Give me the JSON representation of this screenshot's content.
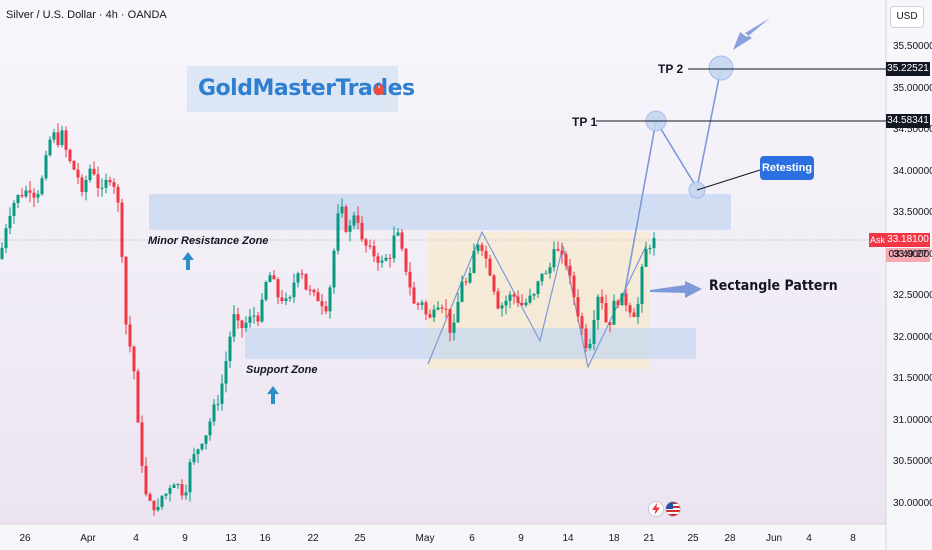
{
  "header": {
    "symbol_title": "Silver / U.S. Dollar · 4h · OANDA",
    "currency": "USD"
  },
  "brand": {
    "name": "GoldMasterTrades",
    "icon": "fire-icon"
  },
  "annotations": {
    "minor_resistance": "Minor Resistance Zone",
    "support": "Support Zone",
    "tp1": "TP 1",
    "tp2": "TP 2",
    "retesting": "Retesting",
    "rectangle": "Rectangle Pattern"
  },
  "price_tags": {
    "tp2_price": "35.22521",
    "tp1_price": "34.58341",
    "ask_label": "Ask",
    "ask_price": "33.18100",
    "countdown": "03:49:27"
  },
  "colors": {
    "up": "#089981",
    "down": "#f23645",
    "zone_blue": "#c5d7f2",
    "rect_yellow": "#f6ead2",
    "projection": "#7d99d9",
    "background": "#f5f1f7"
  },
  "bottom_icons": [
    "lightning-icon",
    "us-flag-icon"
  ],
  "chart_data": {
    "type": "candlestick",
    "title": "Silver / U.S. Dollar · 4h · OANDA",
    "ylim": [
      29.75,
      35.8
    ],
    "y_ticks": [
      "35.50000",
      "35.00000",
      "34.50000",
      "34.00000",
      "33.50000",
      "33.00000",
      "32.50000",
      "32.00000",
      "31.50000",
      "31.00000",
      "30.50000",
      "30.00000"
    ],
    "x_ticks": [
      "26",
      "Apr",
      "4",
      "9",
      "13",
      "16",
      "22",
      "25",
      "May",
      "6",
      "9",
      "14",
      "18",
      "21",
      "25",
      "28",
      "Jun",
      "4",
      "8"
    ],
    "grid": false,
    "candle_close_path": [
      [
        0,
        32.95
      ],
      [
        6,
        33.35
      ],
      [
        12,
        33.6
      ],
      [
        18,
        33.7
      ],
      [
        24,
        33.75
      ],
      [
        30,
        33.8
      ],
      [
        36,
        33.7
      ],
      [
        42,
        33.9
      ],
      [
        47,
        34.2
      ],
      [
        52,
        34.5
      ],
      [
        57,
        34.35
      ],
      [
        62,
        34.45
      ],
      [
        67,
        34.2
      ],
      [
        72,
        34.05
      ],
      [
        77,
        34.0
      ],
      [
        82,
        33.7
      ],
      [
        87,
        33.95
      ],
      [
        92,
        34.1
      ],
      [
        97,
        33.85
      ],
      [
        102,
        33.75
      ],
      [
        107,
        33.9
      ],
      [
        112,
        33.95
      ],
      [
        117,
        33.7
      ],
      [
        121,
        33.3
      ],
      [
        124,
        32.5
      ],
      [
        127,
        32.0
      ],
      [
        130,
        31.9
      ],
      [
        133,
        31.8
      ],
      [
        136,
        31.2
      ],
      [
        139,
        30.8
      ],
      [
        142,
        30.5
      ],
      [
        145,
        30.2
      ],
      [
        148,
        29.9
      ],
      [
        152,
        30.1
      ],
      [
        156,
        29.85
      ],
      [
        160,
        30.0
      ],
      [
        164,
        30.2
      ],
      [
        168,
        30.05
      ],
      [
        172,
        30.4
      ],
      [
        176,
        30.15
      ],
      [
        180,
        30.3
      ],
      [
        184,
        30.0
      ],
      [
        188,
        30.4
      ],
      [
        192,
        30.55
      ],
      [
        196,
        30.6
      ],
      [
        200,
        30.75
      ],
      [
        204,
        30.8
      ],
      [
        208,
        30.9
      ],
      [
        212,
        31.1
      ],
      [
        216,
        31.2
      ],
      [
        220,
        31.3
      ],
      [
        224,
        31.6
      ],
      [
        228,
        31.85
      ],
      [
        232,
        32.2
      ],
      [
        236,
        32.3
      ],
      [
        240,
        32.0
      ],
      [
        244,
        32.25
      ],
      [
        248,
        32.1
      ],
      [
        252,
        32.35
      ],
      [
        256,
        32.2
      ],
      [
        260,
        32.3
      ],
      [
        264,
        32.5
      ],
      [
        268,
        32.8
      ],
      [
        272,
        32.7
      ],
      [
        276,
        32.6
      ],
      [
        280,
        32.4
      ],
      [
        284,
        32.55
      ],
      [
        288,
        32.3
      ],
      [
        292,
        32.6
      ],
      [
        296,
        32.75
      ],
      [
        300,
        32.9
      ],
      [
        304,
        32.7
      ],
      [
        308,
        32.5
      ],
      [
        312,
        32.6
      ],
      [
        316,
        32.4
      ],
      [
        320,
        32.55
      ],
      [
        324,
        32.3
      ],
      [
        328,
        32.45
      ],
      [
        332,
        32.8
      ],
      [
        336,
        33.3
      ],
      [
        340,
        33.6
      ],
      [
        344,
        33.45
      ],
      [
        348,
        33.2
      ],
      [
        352,
        33.45
      ],
      [
        356,
        33.55
      ],
      [
        360,
        33.3
      ],
      [
        364,
        33.0
      ],
      [
        368,
        33.2
      ],
      [
        372,
        32.9
      ],
      [
        376,
        33.1
      ],
      [
        380,
        32.8
      ],
      [
        384,
        33.0
      ],
      [
        388,
        32.9
      ],
      [
        392,
        33.1
      ],
      [
        396,
        33.3
      ],
      [
        400,
        33.15
      ],
      [
        404,
        32.9
      ],
      [
        408,
        32.75
      ],
      [
        412,
        32.5
      ],
      [
        416,
        32.3
      ],
      [
        420,
        32.5
      ],
      [
        424,
        32.4
      ],
      [
        428,
        32.15
      ],
      [
        432,
        32.3
      ],
      [
        436,
        32.5
      ],
      [
        440,
        32.35
      ],
      [
        444,
        32.45
      ],
      [
        448,
        32.2
      ],
      [
        452,
        32.0
      ],
      [
        456,
        32.25
      ],
      [
        460,
        32.6
      ],
      [
        464,
        32.8
      ],
      [
        468,
        32.5
      ],
      [
        472,
        32.95
      ],
      [
        476,
        33.1
      ],
      [
        480,
        33.2
      ],
      [
        484,
        33.0
      ],
      [
        488,
        32.9
      ],
      [
        492,
        32.7
      ],
      [
        496,
        32.5
      ],
      [
        500,
        32.3
      ],
      [
        504,
        32.5
      ],
      [
        508,
        32.4
      ],
      [
        512,
        32.6
      ],
      [
        516,
        32.4
      ],
      [
        520,
        32.5
      ],
      [
        524,
        32.3
      ],
      [
        528,
        32.55
      ],
      [
        532,
        32.4
      ],
      [
        536,
        32.6
      ],
      [
        540,
        32.7
      ],
      [
        544,
        32.9
      ],
      [
        548,
        32.6
      ],
      [
        552,
        33.1
      ],
      [
        556,
        33.15
      ],
      [
        560,
        32.9
      ],
      [
        564,
        33.0
      ],
      [
        568,
        32.8
      ],
      [
        572,
        32.6
      ],
      [
        576,
        32.4
      ],
      [
        580,
        32.2
      ],
      [
        584,
        32.0
      ],
      [
        588,
        31.85
      ],
      [
        592,
        32.1
      ],
      [
        596,
        32.45
      ],
      [
        600,
        32.6
      ],
      [
        604,
        32.3
      ],
      [
        608,
        32.1
      ],
      [
        612,
        32.3
      ],
      [
        616,
        32.5
      ],
      [
        620,
        32.4
      ],
      [
        624,
        32.55
      ],
      [
        628,
        32.3
      ],
      [
        632,
        32.4
      ],
      [
        636,
        32.2
      ],
      [
        640,
        32.6
      ],
      [
        644,
        33.0
      ],
      [
        648,
        33.1
      ],
      [
        652,
        33.15
      ],
      [
        655,
        33.18
      ]
    ],
    "zones": [
      {
        "name": "Minor Resistance Zone",
        "from": 33.1,
        "to": 33.55
      },
      {
        "name": "Support Zone",
        "from": 31.95,
        "to": 32.2
      }
    ],
    "rectangle_pattern": {
      "from": 31.55,
      "to": 33.1
    },
    "targets": [
      {
        "name": "TP 1",
        "price": 34.58341
      },
      {
        "name": "TP 2",
        "price": 35.22521
      }
    ],
    "last_price": 33.181
  }
}
